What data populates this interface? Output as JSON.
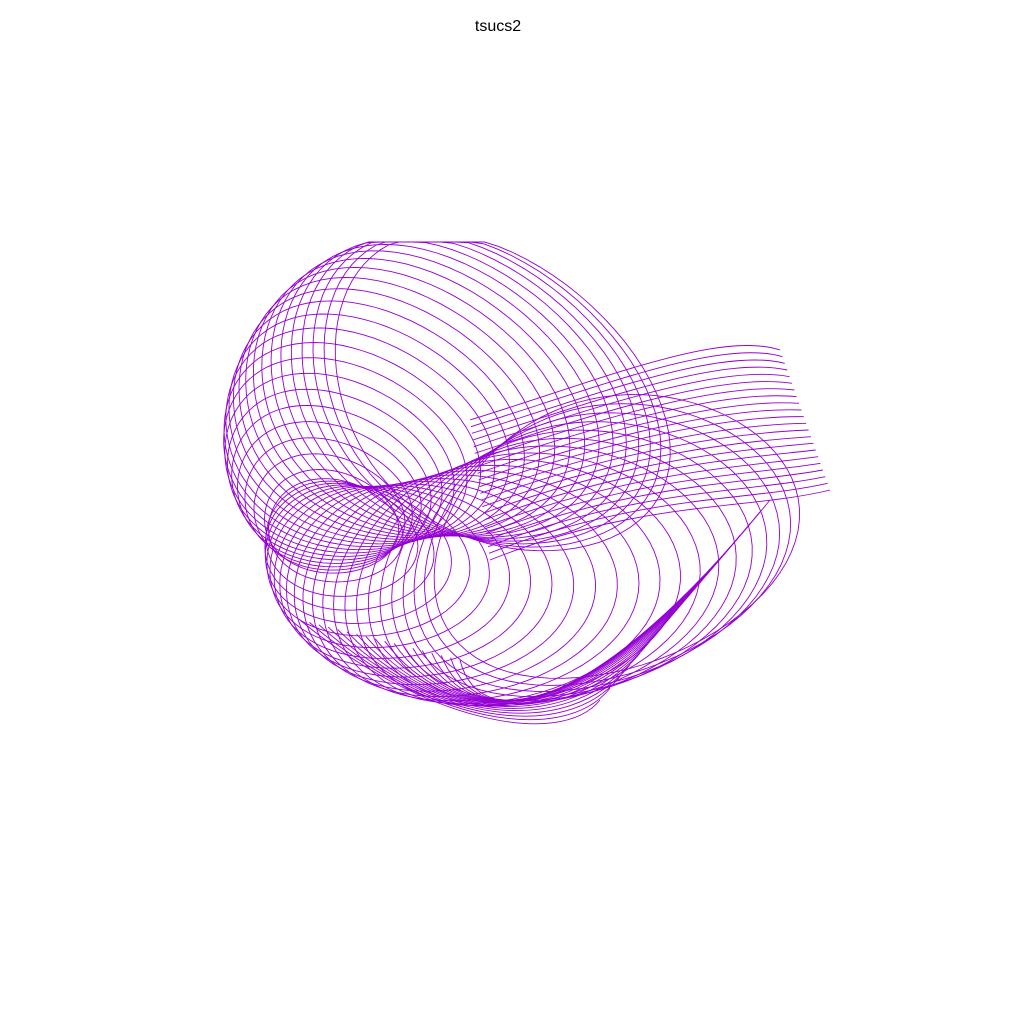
{
  "figure": {
    "title": "tsucs2",
    "line_color": "#9400D3",
    "background_color": "#ffffff"
  }
}
